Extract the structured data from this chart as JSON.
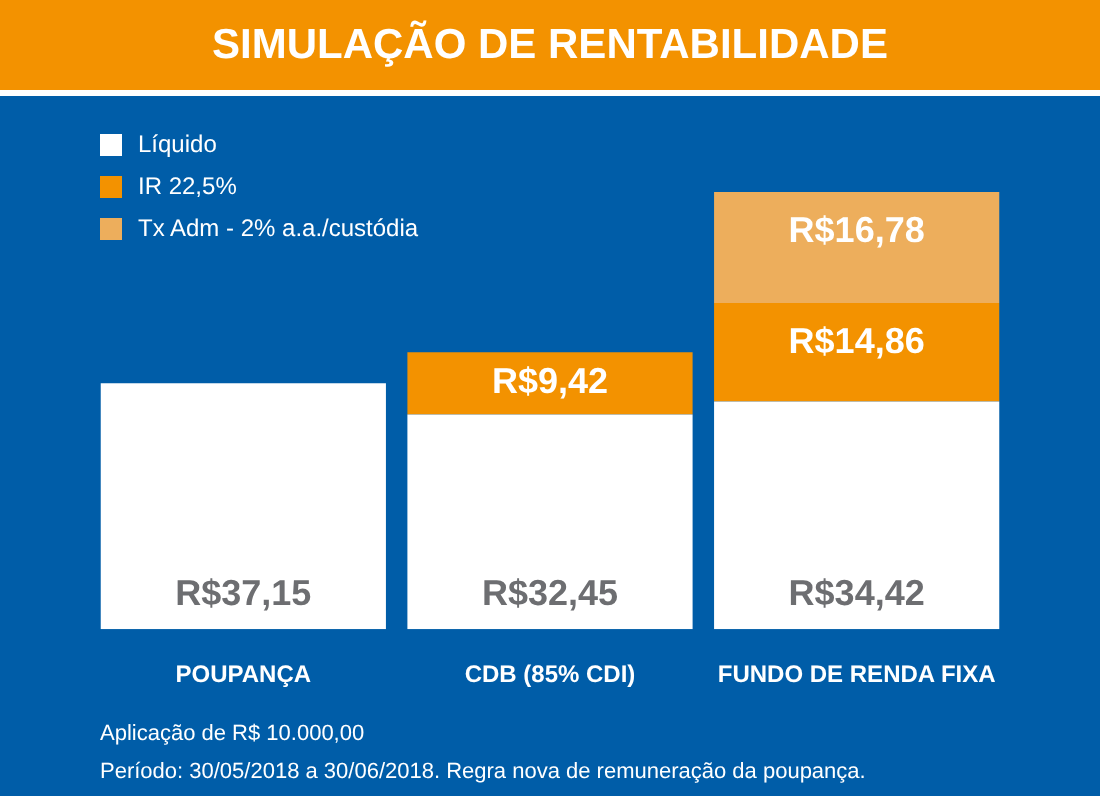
{
  "chart_data": {
    "type": "bar",
    "title": "SIMULAÇÃO DE RENTABILIDADE",
    "categories": [
      "POUPANÇA",
      "CDB (85% CDI)",
      "FUNDO DE RENDA FIXA"
    ],
    "stacked": true,
    "legend": "top left",
    "data_labels": true,
    "series": [
      {
        "name": "Líquido",
        "color": "#ffffff",
        "values": [
          37.15,
          32.45,
          34.42
        ],
        "value_labels": [
          "R$37,15",
          "R$32,45",
          "R$34,42"
        ]
      },
      {
        "name": "IR 22,5%",
        "color": "#f39200",
        "values": [
          null,
          9.42,
          14.86
        ],
        "value_labels": [
          null,
          "R$9,42",
          "R$14,86"
        ]
      },
      {
        "name": "Tx Adm - 2% a.a./custódia",
        "color": "#edae5c",
        "values": [
          null,
          null,
          16.78
        ],
        "value_labels": [
          null,
          null,
          "R$16,78"
        ]
      }
    ],
    "annotations": [
      "Aplicação de R$ 10.000,00",
      "Período: 30/05/2018 a 30/06/2018. Regra nova de remuneração da poupança."
    ]
  }
}
